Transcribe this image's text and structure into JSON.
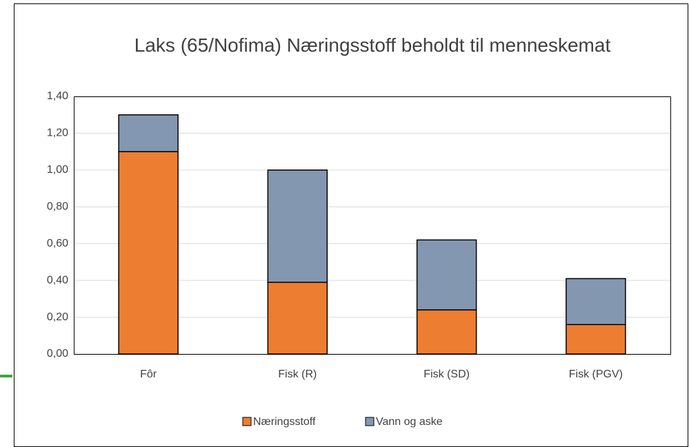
{
  "chart_data": {
    "type": "stacked_bar",
    "title": "Laks (65/Nofima) Næringsstoff beholdt til menneskemat",
    "categories": [
      "Fôr",
      "Fisk (R)",
      "Fisk (SD)",
      "Fisk (PGV)"
    ],
    "series": [
      {
        "name": "Næringsstoff",
        "color": "#ed7d31",
        "values": [
          1.1,
          0.39,
          0.24,
          0.16
        ]
      },
      {
        "name": "Vann og aske",
        "color": "#8497b0",
        "values": [
          0.2,
          0.61,
          0.38,
          0.25
        ]
      }
    ],
    "ylim": [
      0,
      1.4
    ],
    "yticks": [
      {
        "value": 0,
        "label": "0,00"
      },
      {
        "value": 0.2,
        "label": "0,20"
      },
      {
        "value": 0.4,
        "label": "0,40"
      },
      {
        "value": 0.6,
        "label": "0,60"
      },
      {
        "value": 0.8,
        "label": "0,80"
      },
      {
        "value": 1.0,
        "label": "1,00"
      },
      {
        "value": 1.2,
        "label": "1,20"
      },
      {
        "value": 1.4,
        "label": "1,40"
      }
    ],
    "grid": true,
    "legend": "bottom"
  }
}
